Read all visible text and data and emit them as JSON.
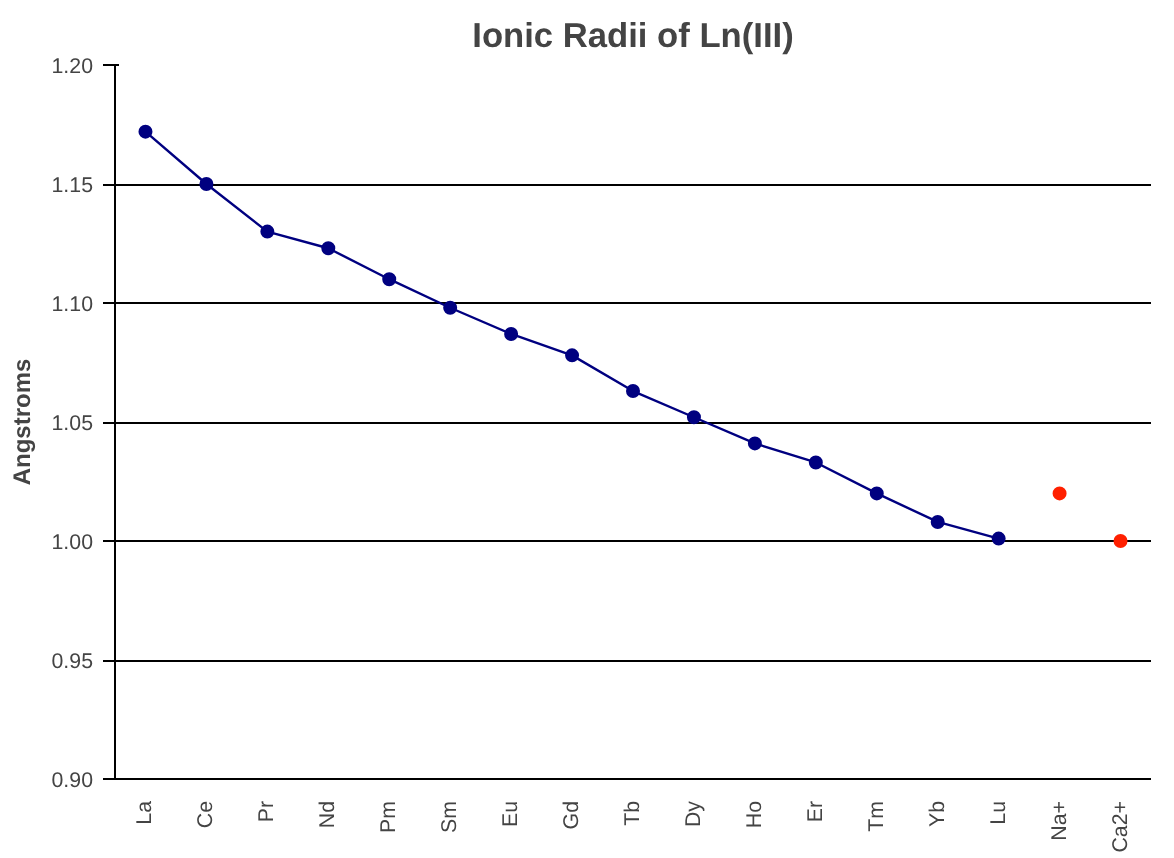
{
  "chart_data": {
    "type": "line",
    "title": "Ionic Radii of Ln(III)",
    "ylabel": "Angstroms",
    "categories": [
      "La",
      "Ce",
      "Pr",
      "Nd",
      "Pm",
      "Sm",
      "Eu",
      "Gd",
      "Tb",
      "Dy",
      "Ho",
      "Er",
      "Tm",
      "Yb",
      "Lu",
      "Na+",
      "Ca2+"
    ],
    "series": [
      {
        "color": "#000080",
        "values": [
          1.172,
          1.15,
          1.13,
          1.123,
          1.11,
          1.098,
          1.087,
          1.078,
          1.063,
          1.052,
          1.041,
          1.033,
          1.02,
          1.008,
          1.001,
          null,
          null
        ]
      },
      {
        "type": "scatter",
        "color": "#ff2000",
        "values": [
          null,
          null,
          null,
          null,
          null,
          null,
          null,
          null,
          null,
          null,
          null,
          null,
          null,
          null,
          null,
          1.02,
          1.0
        ]
      }
    ],
    "ylim": [
      0.9,
      1.2
    ],
    "yticks": [
      {
        "value": 0.9,
        "label": "0.90"
      },
      {
        "value": 0.95,
        "label": "0.95"
      },
      {
        "value": 1.0,
        "label": "1.00"
      },
      {
        "value": 1.05,
        "label": "1.05"
      },
      {
        "value": 1.1,
        "label": "1.10"
      },
      {
        "value": 1.15,
        "label": "1.15"
      },
      {
        "value": 1.2,
        "label": "1.20"
      }
    ],
    "grid": "y",
    "marker": "circle",
    "line_style": "solid"
  }
}
